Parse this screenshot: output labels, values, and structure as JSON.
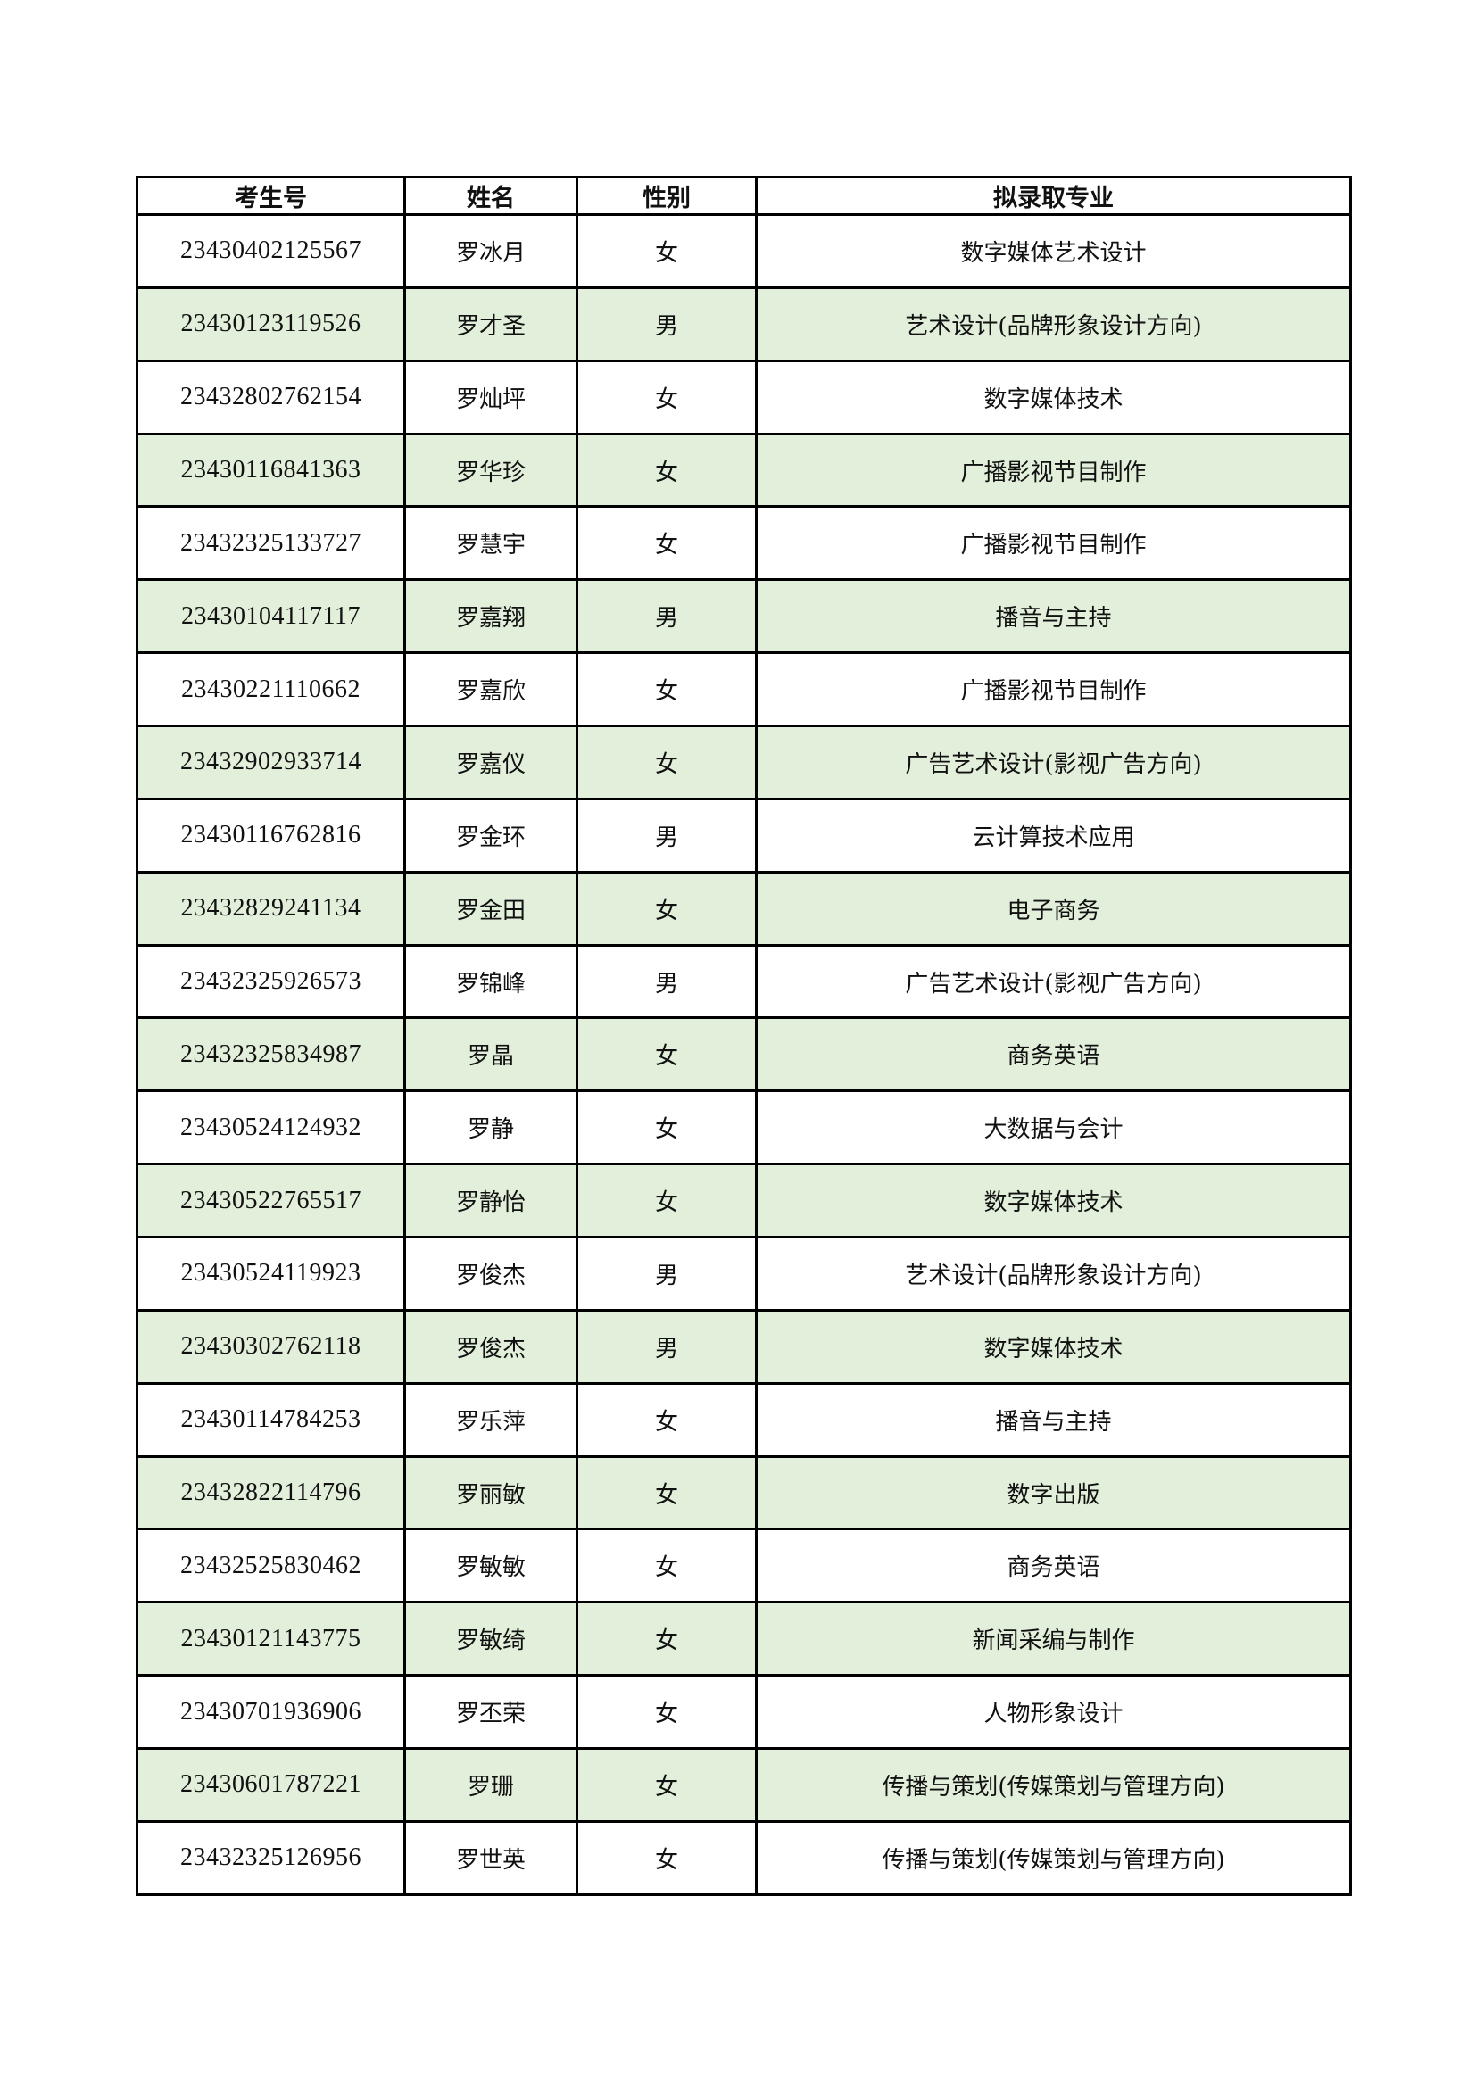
{
  "table": {
    "headers": [
      "考生号",
      "姓名",
      "性别",
      "拟录取专业"
    ],
    "row_highlight_color": "#e2efda",
    "rows": [
      [
        "23430402125567",
        "罗冰月",
        "女",
        "数字媒体艺术设计"
      ],
      [
        "23430123119526",
        "罗才圣",
        "男",
        "艺术设计(品牌形象设计方向)"
      ],
      [
        "23432802762154",
        "罗灿坪",
        "女",
        "数字媒体技术"
      ],
      [
        "23430116841363",
        "罗华珍",
        "女",
        "广播影视节目制作"
      ],
      [
        "23432325133727",
        "罗慧宇",
        "女",
        "广播影视节目制作"
      ],
      [
        "23430104117117",
        "罗嘉翔",
        "男",
        "播音与主持"
      ],
      [
        "23430221110662",
        "罗嘉欣",
        "女",
        "广播影视节目制作"
      ],
      [
        "23432902933714",
        "罗嘉仪",
        "女",
        "广告艺术设计(影视广告方向)"
      ],
      [
        "23430116762816",
        "罗金环",
        "男",
        "云计算技术应用"
      ],
      [
        "23432829241134",
        "罗金田",
        "女",
        "电子商务"
      ],
      [
        "23432325926573",
        "罗锦峰",
        "男",
        "广告艺术设计(影视广告方向)"
      ],
      [
        "23432325834987",
        "罗晶",
        "女",
        "商务英语"
      ],
      [
        "23430524124932",
        "罗静",
        "女",
        "大数据与会计"
      ],
      [
        "23430522765517",
        "罗静怡",
        "女",
        "数字媒体技术"
      ],
      [
        "23430524119923",
        "罗俊杰",
        "男",
        "艺术设计(品牌形象设计方向)"
      ],
      [
        "23430302762118",
        "罗俊杰",
        "男",
        "数字媒体技术"
      ],
      [
        "23430114784253",
        "罗乐萍",
        "女",
        "播音与主持"
      ],
      [
        "23432822114796",
        "罗丽敏",
        "女",
        "数字出版"
      ],
      [
        "23432525830462",
        "罗敏敏",
        "女",
        "商务英语"
      ],
      [
        "23430121143775",
        "罗敏绮",
        "女",
        "新闻采编与制作"
      ],
      [
        "23430701936906",
        "罗丕荣",
        "女",
        "人物形象设计"
      ],
      [
        "23430601787221",
        "罗珊",
        "女",
        "传播与策划(传媒策划与管理方向)"
      ],
      [
        "23432325126956",
        "罗世英",
        "女",
        "传播与策划(传媒策划与管理方向)"
      ]
    ]
  }
}
